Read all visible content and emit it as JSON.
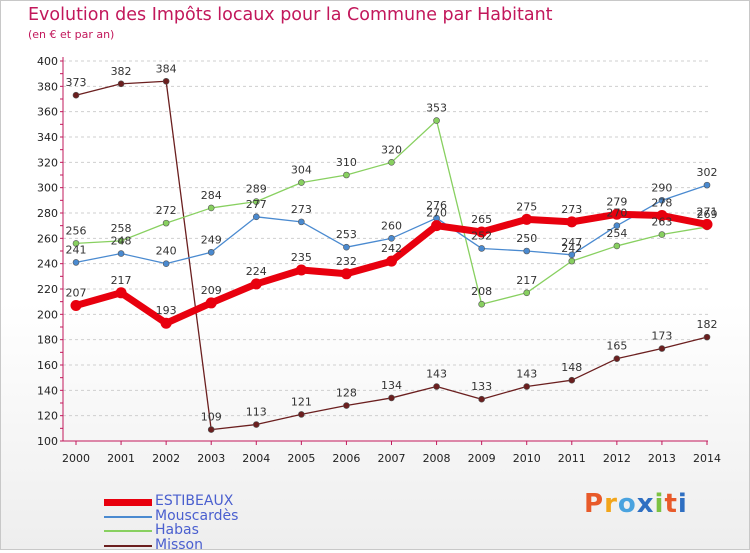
{
  "header": {
    "title": "Evolution des Impôts locaux pour la Commune par Habitant",
    "subtitle": "(en € et par an)"
  },
  "logo": {
    "text": "Proxiti",
    "colors": [
      "#e85a2a",
      "#f2a51a",
      "#4aa3df",
      "#2f6fc2",
      "#7cc242",
      "#e85a2a",
      "#2f6fc2"
    ]
  },
  "chart_data": {
    "type": "line",
    "title": "Evolution des Impôts locaux pour la Commune par Habitant",
    "subtitle": "(en € et par an)",
    "xlabel": "",
    "ylabel": "",
    "categories": [
      "2000",
      "2001",
      "2002",
      "2003",
      "2004",
      "2005",
      "2006",
      "2007",
      "2008",
      "2009",
      "2010",
      "2011",
      "2012",
      "2013",
      "2014"
    ],
    "ylim": [
      100,
      400
    ],
    "ytick_step": 20,
    "yticks": [
      "100",
      "120",
      "140",
      "160",
      "180",
      "200",
      "220",
      "240",
      "260",
      "280",
      "300",
      "320",
      "340",
      "360",
      "380",
      "400"
    ],
    "grid": "horizontal dashed",
    "legend_position": "bottom-left",
    "series": [
      {
        "name": "ESTIBEAUX",
        "color": "#e8000e",
        "values": [
          207,
          217,
          193,
          209,
          224,
          235,
          232,
          242,
          270,
          265,
          275,
          273,
          279,
          278,
          271
        ]
      },
      {
        "name": "Mouscardès",
        "color": "#4a8ad0",
        "values": [
          241,
          248,
          240,
          249,
          277,
          273,
          253,
          260,
          276,
          252,
          250,
          247,
          270,
          290,
          302
        ]
      },
      {
        "name": "Habas",
        "color": "#88d060",
        "values": [
          256,
          258,
          272,
          284,
          289,
          304,
          310,
          320,
          353,
          208,
          217,
          242,
          254,
          263,
          269
        ]
      },
      {
        "name": "Misson",
        "color": "#6b1f1f",
        "values": [
          373,
          382,
          384,
          109,
          113,
          121,
          128,
          134,
          143,
          133,
          143,
          148,
          165,
          173,
          182
        ]
      }
    ]
  }
}
